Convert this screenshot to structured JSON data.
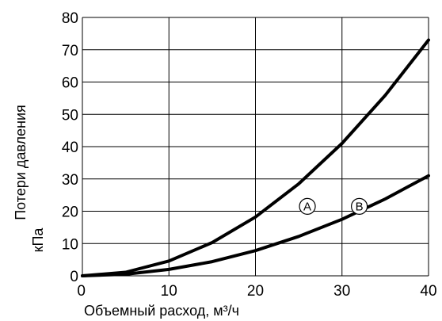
{
  "chart_data": {
    "type": "line",
    "xlabel": "Объемный расход, м³/ч",
    "ylabel_line1": "Потери давления",
    "ylabel_line2": "кПа",
    "xlim": [
      0,
      40
    ],
    "ylim": [
      0,
      80
    ],
    "x_ticks": [
      "0",
      "10",
      "20",
      "30",
      "40"
    ],
    "y_ticks": [
      "0",
      "10",
      "20",
      "30",
      "40",
      "50",
      "60",
      "70",
      "80"
    ],
    "grid": true,
    "series": [
      {
        "name": "A",
        "x": [
          0,
          5,
          10,
          15,
          20,
          25,
          30,
          35,
          40
        ],
        "y": [
          0,
          1.1,
          4.6,
          10.3,
          18.2,
          28.5,
          41.0,
          55.9,
          73.0
        ]
      },
      {
        "name": "B",
        "x": [
          0,
          5,
          10,
          15,
          20,
          25,
          30,
          35,
          40
        ],
        "y": [
          0,
          0.5,
          2.0,
          4.4,
          7.8,
          12.2,
          17.5,
          23.8,
          31.0
        ]
      }
    ],
    "line_color": "#000000"
  }
}
